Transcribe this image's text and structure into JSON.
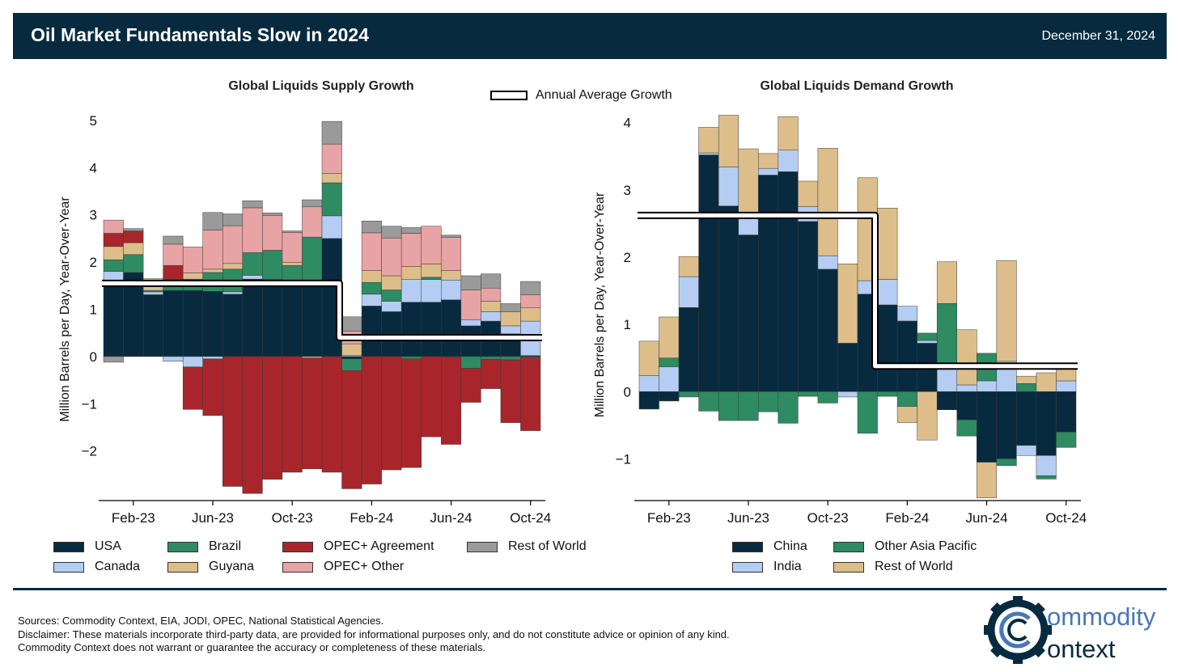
{
  "header": {
    "title": "Oil Market Fundamentals Slow in 2024",
    "date": "December 31, 2024",
    "bg_color": "#072a3f"
  },
  "annual_legend": "Annual Average Growth",
  "supply_legend": [
    {
      "key": "usa",
      "label": "USA",
      "color": "#072a3f"
    },
    {
      "key": "canada",
      "label": "Canada",
      "color": "#b5cdf2"
    },
    {
      "key": "brazil",
      "label": "Brazil",
      "color": "#2e8b62"
    },
    {
      "key": "guyana",
      "label": "Guyana",
      "color": "#ddbe8a"
    },
    {
      "key": "opec_agreement",
      "label": "OPEC+ Agreement",
      "color": "#a8262b"
    },
    {
      "key": "opec_other",
      "label": "OPEC+ Other",
      "color": "#e8a3a5"
    },
    {
      "key": "rest",
      "label": "Rest of World",
      "color": "#9a9a9a"
    }
  ],
  "demand_legend": [
    {
      "key": "china",
      "label": "China",
      "color": "#072a3f"
    },
    {
      "key": "india",
      "label": "India",
      "color": "#b5cdf2"
    },
    {
      "key": "other_ap",
      "label": "Other Asia Pacific",
      "color": "#2e8b62"
    },
    {
      "key": "rest",
      "label": "Rest of World",
      "color": "#ddbe8a"
    }
  ],
  "footer": {
    "sources": "Sources: Commodity Context, EIA, JODI, OPEC, National Statistical Agencies.",
    "disclaimer": "Disclaimer: These materials incorporate third-party data, are provided for informational purposes only, and do not constitute advice or opinion of any kind. Commodity Context does not warrant or guarantee the accuracy or completeness of these materials.",
    "logo_line1": "ommodity",
    "logo_line2": "ontext"
  },
  "chart_data": [
    {
      "type": "bar",
      "stacked": true,
      "title": "Global Liquids Supply Growth",
      "xlabel": "",
      "ylabel": "Million Barrels per Day, Year-Over-Year",
      "ylim": [
        -3.05,
        5.05
      ],
      "yticks": [
        -2,
        -1,
        0,
        1,
        2,
        3,
        4,
        5
      ],
      "xtick_labels": [
        "Feb-23",
        "Jun-23",
        "Oct-23",
        "Feb-24",
        "Jun-24",
        "Oct-24"
      ],
      "xtick_positions": [
        "Feb-23",
        "Jun-23",
        "Oct-23",
        "Feb-24",
        "Jun-24",
        "Oct-24"
      ],
      "categories": [
        "Jan-23",
        "Feb-23",
        "Mar-23",
        "Apr-23",
        "May-23",
        "Jun-23",
        "Jul-23",
        "Aug-23",
        "Sep-23",
        "Oct-23",
        "Nov-23",
        "Dec-23",
        "Jan-24",
        "Feb-24",
        "Mar-24",
        "Apr-24",
        "May-24",
        "Jun-24",
        "Jul-24",
        "Aug-24",
        "Sep-24",
        "Oct-24"
      ],
      "series": [
        {
          "name": "USA",
          "key": "usa",
          "color": "#072a3f",
          "values": [
            1.58,
            1.78,
            1.31,
            1.4,
            1.4,
            1.38,
            1.32,
            1.64,
            1.63,
            1.55,
            1.55,
            2.5,
            -0.05,
            1.07,
            0.95,
            1.15,
            1.15,
            1.2,
            0.65,
            0.75,
            0.48,
            0.02
          ]
        },
        {
          "name": "Canada",
          "key": "canada",
          "color": "#b5cdf2",
          "values": [
            0.22,
            0.0,
            0.06,
            -0.1,
            -0.22,
            -0.05,
            0.05,
            0.08,
            0.0,
            0.0,
            0.0,
            0.48,
            0.02,
            0.25,
            0.22,
            0.48,
            0.48,
            0.42,
            0.13,
            0.2,
            0.17,
            0.73
          ]
        },
        {
          "name": "Brazil",
          "key": "brazil",
          "color": "#2e8b62",
          "values": [
            0.25,
            0.38,
            0.03,
            0.09,
            0.24,
            0.4,
            0.48,
            0.48,
            0.62,
            0.38,
            0.98,
            0.7,
            -0.25,
            0.25,
            0.24,
            -0.05,
            0.05,
            -0.01,
            -0.25,
            -0.06,
            -0.07,
            -0.02
          ]
        },
        {
          "name": "Guyana",
          "key": "guyana",
          "color": "#ddbe8a",
          "values": [
            0.28,
            0.25,
            0.25,
            0.14,
            0.13,
            0.07,
            0.12,
            0.0,
            0.0,
            0.06,
            -0.03,
            0.2,
            0.25,
            0.25,
            0.3,
            0.28,
            0.28,
            0.2,
            0.0,
            0.22,
            0.3,
            0.28
          ]
        },
        {
          "name": "OPEC+ Agreement",
          "key": "opec_agreement",
          "color": "#a8262b",
          "values": [
            0.28,
            0.25,
            0.0,
            0.3,
            -0.9,
            -1.2,
            -2.75,
            -2.9,
            -2.6,
            -2.45,
            -2.35,
            -2.45,
            -2.5,
            -2.7,
            -2.4,
            -2.3,
            -1.7,
            -1.85,
            -0.72,
            -0.62,
            -1.33,
            -1.55
          ]
        },
        {
          "name": "OPEC+ Other",
          "key": "opec_other",
          "color": "#e8a3a5",
          "values": [
            0.28,
            0.0,
            0.0,
            0.45,
            0.55,
            0.83,
            0.8,
            0.95,
            0.74,
            0.64,
            0.64,
            0.62,
            0.27,
            0.8,
            0.8,
            0.7,
            0.8,
            0.7,
            0.63,
            0.28,
            0.0,
            0.28
          ]
        },
        {
          "name": "Rest of World",
          "key": "rest",
          "color": "#9a9a9a",
          "values": [
            -0.12,
            0.05,
            0.0,
            0.17,
            0.0,
            0.37,
            0.25,
            0.15,
            0.05,
            0.03,
            0.15,
            0.48,
            0.3,
            0.25,
            0.25,
            0.12,
            0.0,
            0.05,
            0.3,
            0.3,
            0.17,
            0.28
          ]
        }
      ],
      "annual_average": [
        {
          "from": "Jan-23",
          "to": "Dec-23",
          "value": 1.55
        },
        {
          "from": "Dec-23",
          "to": "Oct-24",
          "value": 0.4
        }
      ]
    },
    {
      "type": "bar",
      "stacked": true,
      "title": "Global Liquids Demand Growth",
      "xlabel": "",
      "ylabel": "Million Barrels per Day, Year-Over-Year",
      "ylim": [
        -1.62,
        4.2
      ],
      "yticks": [
        -1,
        0,
        1,
        2,
        3,
        4
      ],
      "xtick_labels": [
        "Feb-23",
        "Jun-23",
        "Oct-23",
        "Feb-24",
        "Jun-24",
        "Oct-24"
      ],
      "xtick_positions": [
        "Feb-23",
        "Jun-23",
        "Oct-23",
        "Feb-24",
        "Jun-24",
        "Oct-24"
      ],
      "categories": [
        "Jan-23",
        "Feb-23",
        "Mar-23",
        "Apr-23",
        "May-23",
        "Jun-23",
        "Jul-23",
        "Aug-23",
        "Sep-23",
        "Oct-23",
        "Nov-23",
        "Dec-23",
        "Jan-24",
        "Feb-24",
        "Mar-24",
        "Apr-24",
        "May-24",
        "Jun-24",
        "Jul-24",
        "Aug-24",
        "Sep-24",
        "Oct-24"
      ],
      "series": [
        {
          "name": "China",
          "key": "china",
          "color": "#072a3f",
          "values": [
            -0.26,
            -0.14,
            1.25,
            3.52,
            2.76,
            2.33,
            3.22,
            3.27,
            2.53,
            1.82,
            0.72,
            1.45,
            1.29,
            1.05,
            0.72,
            -0.27,
            -0.42,
            -1.05,
            -1.0,
            -0.8,
            -0.95,
            -0.6
          ]
        },
        {
          "name": "India",
          "key": "india",
          "color": "#b5cdf2",
          "values": [
            0.24,
            0.37,
            0.46,
            0.03,
            0.58,
            0.25,
            0.1,
            0.32,
            0.22,
            0.2,
            -0.08,
            0.2,
            0.38,
            0.22,
            0.04,
            0.34,
            0.1,
            0.16,
            0.45,
            -0.15,
            -0.3,
            0.16
          ]
        },
        {
          "name": "Other Asia Pacific",
          "key": "other_ap",
          "color": "#2e8b62",
          "values": [
            0.0,
            0.13,
            -0.08,
            -0.29,
            -0.43,
            -0.43,
            -0.3,
            -0.47,
            -0.07,
            -0.17,
            0.0,
            -0.62,
            -0.07,
            -0.22,
            0.11,
            0.97,
            -0.24,
            0.41,
            -0.1,
            0.12,
            -0.05,
            -0.23
          ]
        },
        {
          "name": "Rest of World",
          "key": "rest",
          "color": "#ddbe8a",
          "values": [
            0.51,
            0.61,
            0.3,
            0.38,
            0.77,
            1.03,
            0.22,
            0.5,
            0.38,
            1.6,
            1.18,
            1.53,
            1.06,
            -0.24,
            -0.72,
            0.62,
            0.82,
            -0.53,
            1.5,
            0.11,
            0.28,
            0.18
          ]
        }
      ],
      "annual_average": [
        {
          "from": "Jan-23",
          "to": "Dec-23",
          "value": 2.62
        },
        {
          "from": "Dec-23",
          "to": "Oct-24",
          "value": 0.38
        }
      ]
    }
  ]
}
